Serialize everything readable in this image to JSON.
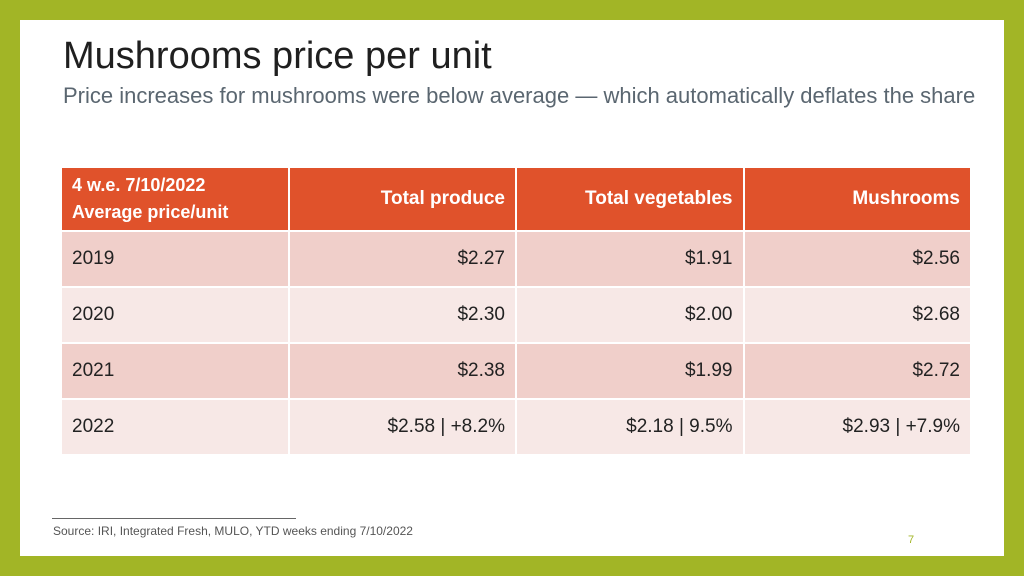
{
  "slide": {
    "title": "Mushrooms price per unit",
    "subtitle": "Price increases for mushrooms were below average — which automatically deflates the share",
    "table": {
      "header_line1": "4 w.e. 7/10/2022",
      "header_line2": "Average price/unit",
      "columns": [
        "Total produce",
        "Total vegetables",
        "Mushrooms"
      ],
      "rows": [
        {
          "year": "2019",
          "values": [
            "$2.27",
            "$1.91",
            "$2.56"
          ]
        },
        {
          "year": "2020",
          "values": [
            "$2.30",
            "$2.00",
            "$2.68"
          ]
        },
        {
          "year": "2021",
          "values": [
            "$2.38",
            "$1.99",
            "$2.72"
          ]
        },
        {
          "year": "2022",
          "values": [
            "$2.58 | +8.2%",
            "$2.18 | 9.5%",
            "$2.93 | +7.9%"
          ]
        }
      ]
    },
    "source": "Source: IRI, Integrated Fresh, MULO, YTD weeks ending 7/10/2022",
    "page_number": "7"
  },
  "colors": {
    "frame": "#a2b526",
    "header_bg": "#e0522b",
    "row_odd": "#f0cfca",
    "row_even": "#f7e8e6"
  }
}
